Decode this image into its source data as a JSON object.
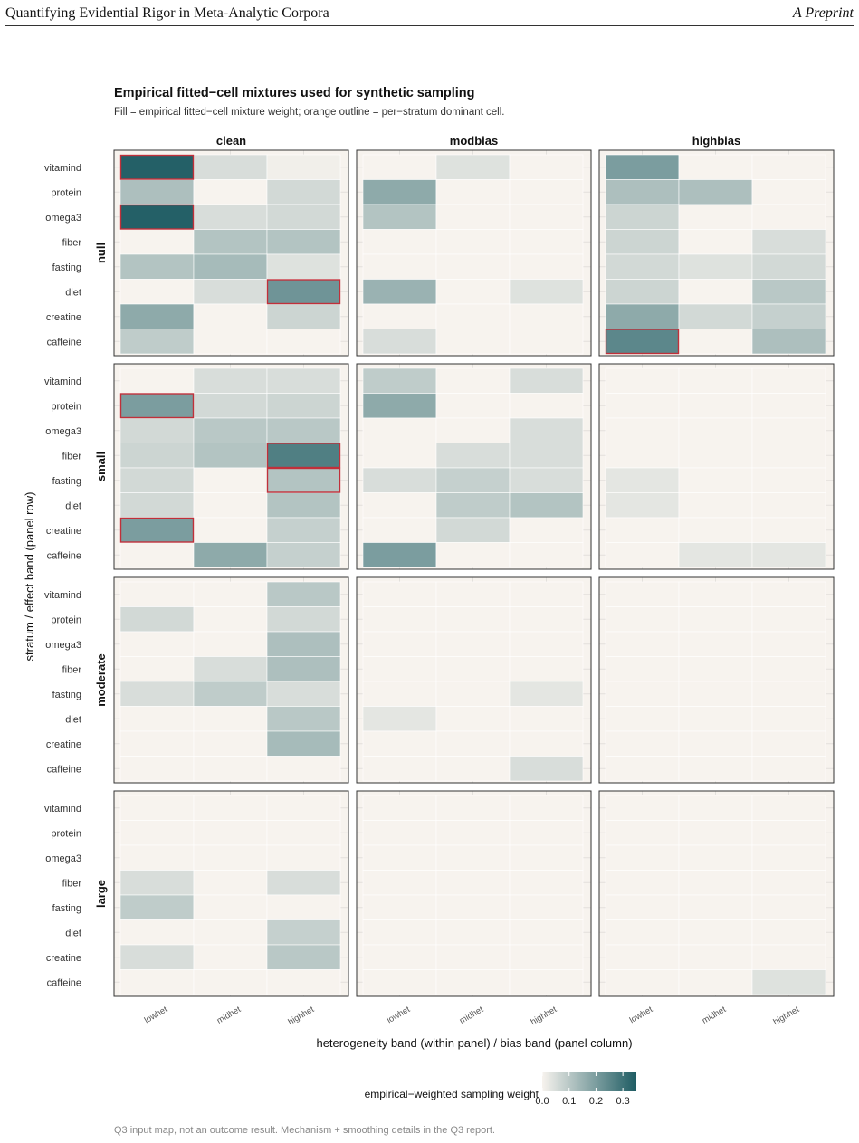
{
  "header": {
    "left": "Quantifying Evidential Rigor in Meta-Analytic Corpora",
    "right": "A Preprint"
  },
  "caption": "Q3 input map, not an outcome result. Mechanism + smoothing details in the Q3 report.",
  "colors": {
    "low": "#f7f3ee",
    "high": "#1e5c63",
    "highlight": "#c0303a",
    "grid": "#e3e0dc",
    "panel_border": "#333333"
  },
  "chart_data": {
    "type": "heatmap",
    "title": "Empirical fitted−cell mixtures used for synthetic sampling",
    "subtitle": "Fill = empirical fitted−cell mixture weight; orange outline = per−stratum dominant cell.",
    "xlabel": "heterogeneity band (within panel)  /  bias band (panel column)",
    "ylabel": "stratum  /  effect band (panel row)",
    "panel_columns": [
      "clean",
      "modbias",
      "highbias"
    ],
    "panel_rows": [
      "null",
      "small",
      "moderate",
      "large"
    ],
    "x_categories": [
      "lowhet",
      "midhet",
      "highhet"
    ],
    "y_categories": [
      "vitamind",
      "protein",
      "omega3",
      "fiber",
      "fasting",
      "diet",
      "creatine",
      "caffeine"
    ],
    "legend": {
      "title": "empirical−weighted sampling weight",
      "ticks": [
        "0.0",
        "0.1",
        "0.2",
        "0.3"
      ],
      "min": 0,
      "max": 0.35
    },
    "panels": [
      {
        "row": "null",
        "col": "clean",
        "values": [
          [
            0.34,
            0.05,
            0.01
          ],
          [
            0.12,
            0.0,
            0.06
          ],
          [
            0.34,
            0.05,
            0.06
          ],
          [
            0.0,
            0.11,
            0.11
          ],
          [
            0.11,
            0.13,
            0.04
          ],
          [
            0.0,
            0.05,
            0.22
          ],
          [
            0.17,
            0.0,
            0.07
          ],
          [
            0.09,
            0.0,
            0.0
          ]
        ],
        "dominant": [
          [
            0,
            0
          ],
          [
            2,
            0
          ],
          [
            5,
            2
          ]
        ]
      },
      {
        "row": "null",
        "col": "modbias",
        "values": [
          [
            0.0,
            0.04,
            0.0
          ],
          [
            0.17,
            0.0,
            0.0
          ],
          [
            0.11,
            0.0,
            0.0
          ],
          [
            0.0,
            0.0,
            0.0
          ],
          [
            0.0,
            0.0,
            0.0
          ],
          [
            0.15,
            0.0,
            0.04
          ],
          [
            0.0,
            0.0,
            0.0
          ],
          [
            0.05,
            0.0,
            0.0
          ]
        ],
        "dominant": []
      },
      {
        "row": "null",
        "col": "highbias",
        "values": [
          [
            0.2,
            0.0,
            0.0
          ],
          [
            0.12,
            0.12,
            0.0
          ],
          [
            0.07,
            0.0,
            0.0
          ],
          [
            0.07,
            0.0,
            0.05
          ],
          [
            0.06,
            0.04,
            0.06
          ],
          [
            0.07,
            0.0,
            0.1
          ],
          [
            0.17,
            0.06,
            0.08
          ],
          [
            0.25,
            0.0,
            0.12
          ]
        ],
        "dominant": [
          [
            7,
            0
          ]
        ]
      },
      {
        "row": "small",
        "col": "clean",
        "values": [
          [
            0.0,
            0.05,
            0.05
          ],
          [
            0.2,
            0.06,
            0.07
          ],
          [
            0.06,
            0.1,
            0.1
          ],
          [
            0.07,
            0.11,
            0.27
          ],
          [
            0.06,
            0.0,
            0.11
          ],
          [
            0.06,
            0.0,
            0.11
          ],
          [
            0.2,
            0.0,
            0.08
          ],
          [
            0.0,
            0.17,
            0.08
          ]
        ],
        "dominant": [
          [
            1,
            0
          ],
          [
            3,
            2
          ],
          [
            4,
            2
          ],
          [
            6,
            0
          ]
        ]
      },
      {
        "row": "small",
        "col": "modbias",
        "values": [
          [
            0.09,
            0.0,
            0.05
          ],
          [
            0.17,
            0.0,
            0.0
          ],
          [
            0.0,
            0.0,
            0.05
          ],
          [
            0.0,
            0.05,
            0.05
          ],
          [
            0.05,
            0.08,
            0.05
          ],
          [
            0.0,
            0.09,
            0.11
          ],
          [
            0.0,
            0.06,
            0.0
          ],
          [
            0.2,
            0.0,
            0.0
          ]
        ],
        "dominant": []
      },
      {
        "row": "small",
        "col": "highbias",
        "values": [
          [
            0.0,
            0.0,
            0.0
          ],
          [
            0.0,
            0.0,
            0.0
          ],
          [
            0.0,
            0.0,
            0.0
          ],
          [
            0.0,
            0.0,
            0.0
          ],
          [
            0.03,
            0.0,
            0.0
          ],
          [
            0.03,
            0.0,
            0.0
          ],
          [
            0.0,
            0.0,
            0.0
          ],
          [
            0.0,
            0.03,
            0.03
          ]
        ],
        "dominant": []
      },
      {
        "row": "moderate",
        "col": "clean",
        "values": [
          [
            0.0,
            0.0,
            0.1
          ],
          [
            0.06,
            0.0,
            0.06
          ],
          [
            0.0,
            0.0,
            0.12
          ],
          [
            0.0,
            0.05,
            0.12
          ],
          [
            0.05,
            0.09,
            0.05
          ],
          [
            0.0,
            0.0,
            0.1
          ],
          [
            0.0,
            0.0,
            0.13
          ],
          [
            0.0,
            0.0,
            0.0
          ]
        ],
        "dominant": []
      },
      {
        "row": "moderate",
        "col": "modbias",
        "values": [
          [
            0.0,
            0.0,
            0.0
          ],
          [
            0.0,
            0.0,
            0.0
          ],
          [
            0.0,
            0.0,
            0.0
          ],
          [
            0.0,
            0.0,
            0.0
          ],
          [
            0.0,
            0.0,
            0.03
          ],
          [
            0.03,
            0.0,
            0.0
          ],
          [
            0.0,
            0.0,
            0.0
          ],
          [
            0.0,
            0.0,
            0.05
          ]
        ],
        "dominant": []
      },
      {
        "row": "moderate",
        "col": "highbias",
        "values": [
          [
            0.0,
            0.0,
            0.0
          ],
          [
            0.0,
            0.0,
            0.0
          ],
          [
            0.0,
            0.0,
            0.0
          ],
          [
            0.0,
            0.0,
            0.0
          ],
          [
            0.0,
            0.0,
            0.0
          ],
          [
            0.0,
            0.0,
            0.0
          ],
          [
            0.0,
            0.0,
            0.0
          ],
          [
            0.0,
            0.0,
            0.0
          ]
        ],
        "dominant": []
      },
      {
        "row": "large",
        "col": "clean",
        "values": [
          [
            0.0,
            0.0,
            0.0
          ],
          [
            0.0,
            0.0,
            0.0
          ],
          [
            0.0,
            0.0,
            0.0
          ],
          [
            0.05,
            0.0,
            0.05
          ],
          [
            0.09,
            0.0,
            0.0
          ],
          [
            0.0,
            0.0,
            0.08
          ],
          [
            0.05,
            0.0,
            0.1
          ],
          [
            0.0,
            0.0,
            0.0
          ]
        ],
        "dominant": []
      },
      {
        "row": "large",
        "col": "modbias",
        "values": [
          [
            0.0,
            0.0,
            0.0
          ],
          [
            0.0,
            0.0,
            0.0
          ],
          [
            0.0,
            0.0,
            0.0
          ],
          [
            0.0,
            0.0,
            0.0
          ],
          [
            0.0,
            0.0,
            0.0
          ],
          [
            0.0,
            0.0,
            0.0
          ],
          [
            0.0,
            0.0,
            0.0
          ],
          [
            0.0,
            0.0,
            0.0
          ]
        ],
        "dominant": []
      },
      {
        "row": "large",
        "col": "highbias",
        "values": [
          [
            0.0,
            0.0,
            0.0
          ],
          [
            0.0,
            0.0,
            0.0
          ],
          [
            0.0,
            0.0,
            0.0
          ],
          [
            0.0,
            0.0,
            0.0
          ],
          [
            0.0,
            0.0,
            0.0
          ],
          [
            0.0,
            0.0,
            0.0
          ],
          [
            0.0,
            0.0,
            0.0
          ],
          [
            0.0,
            0.0,
            0.04
          ]
        ],
        "dominant": []
      }
    ]
  }
}
